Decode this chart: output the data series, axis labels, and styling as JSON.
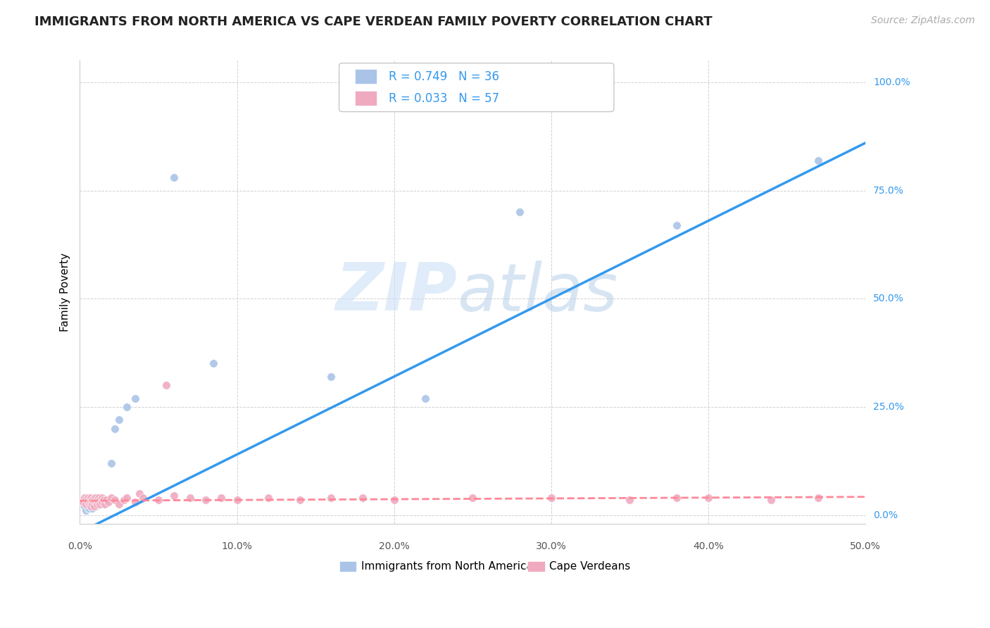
{
  "title": "IMMIGRANTS FROM NORTH AMERICA VS CAPE VERDEAN FAMILY POVERTY CORRELATION CHART",
  "source": "Source: ZipAtlas.com",
  "ylabel": "Family Poverty",
  "legend1_R": "0.749",
  "legend1_N": "36",
  "legend2_R": "0.033",
  "legend2_N": "57",
  "legend_bottom1": "Immigrants from North America",
  "legend_bottom2": "Cape Verdeans",
  "blue_color": "#aac4e8",
  "pink_color": "#f0aac0",
  "blue_line_color": "#3399ee",
  "pink_line_color": "#ff8899",
  "blue_points_x": [
    0.003,
    0.004,
    0.005,
    0.005,
    0.006,
    0.006,
    0.007,
    0.007,
    0.008,
    0.008,
    0.009,
    0.009,
    0.01,
    0.01,
    0.011,
    0.011,
    0.012,
    0.013,
    0.013,
    0.014,
    0.015,
    0.015,
    0.016,
    0.017,
    0.02,
    0.022,
    0.025,
    0.03,
    0.035,
    0.06,
    0.085,
    0.16,
    0.22,
    0.28,
    0.38,
    0.47
  ],
  "blue_points_y": [
    0.02,
    0.01,
    0.03,
    0.015,
    0.02,
    0.015,
    0.03,
    0.02,
    0.025,
    0.015,
    0.025,
    0.02,
    0.03,
    0.02,
    0.03,
    0.025,
    0.035,
    0.025,
    0.03,
    0.035,
    0.025,
    0.03,
    0.035,
    0.03,
    0.12,
    0.2,
    0.22,
    0.25,
    0.27,
    0.78,
    0.35,
    0.32,
    0.27,
    0.7,
    0.67,
    0.82
  ],
  "pink_points_x": [
    0.002,
    0.003,
    0.004,
    0.004,
    0.005,
    0.005,
    0.006,
    0.006,
    0.007,
    0.007,
    0.007,
    0.008,
    0.008,
    0.009,
    0.009,
    0.009,
    0.01,
    0.01,
    0.011,
    0.011,
    0.012,
    0.012,
    0.013,
    0.013,
    0.014,
    0.014,
    0.015,
    0.016,
    0.017,
    0.018,
    0.02,
    0.022,
    0.025,
    0.028,
    0.03,
    0.035,
    0.038,
    0.04,
    0.05,
    0.055,
    0.06,
    0.07,
    0.08,
    0.09,
    0.1,
    0.12,
    0.14,
    0.16,
    0.18,
    0.2,
    0.25,
    0.3,
    0.35,
    0.38,
    0.4,
    0.44,
    0.47
  ],
  "pink_points_y": [
    0.03,
    0.04,
    0.035,
    0.025,
    0.04,
    0.03,
    0.035,
    0.025,
    0.04,
    0.03,
    0.02,
    0.035,
    0.025,
    0.04,
    0.03,
    0.02,
    0.04,
    0.03,
    0.035,
    0.025,
    0.04,
    0.03,
    0.035,
    0.025,
    0.04,
    0.03,
    0.035,
    0.025,
    0.035,
    0.03,
    0.04,
    0.035,
    0.025,
    0.035,
    0.04,
    0.03,
    0.05,
    0.04,
    0.035,
    0.3,
    0.045,
    0.04,
    0.035,
    0.04,
    0.035,
    0.04,
    0.035,
    0.04,
    0.04,
    0.035,
    0.04,
    0.04,
    0.035,
    0.04,
    0.04,
    0.035,
    0.04
  ],
  "xlim": [
    0.0,
    0.5
  ],
  "ylim": [
    -0.02,
    1.05
  ],
  "xticks": [
    0.0,
    0.1,
    0.2,
    0.3,
    0.4,
    0.5
  ],
  "xtick_labels": [
    "0.0%",
    "10.0%",
    "20.0%",
    "30.0%",
    "40.0%",
    "50.0%"
  ],
  "yticks": [
    0.0,
    0.25,
    0.5,
    0.75,
    1.0
  ],
  "ytick_labels": [
    "0.0%",
    "25.0%",
    "50.0%",
    "75.0%",
    "100.0%"
  ],
  "blue_line_x0": 0.0,
  "blue_line_y0": -0.04,
  "blue_line_x1": 0.5,
  "blue_line_y1": 0.86,
  "pink_line_x0": 0.0,
  "pink_line_y0": 0.033,
  "pink_line_x1": 0.5,
  "pink_line_y1": 0.042,
  "title_fontsize": 13,
  "source_fontsize": 10
}
